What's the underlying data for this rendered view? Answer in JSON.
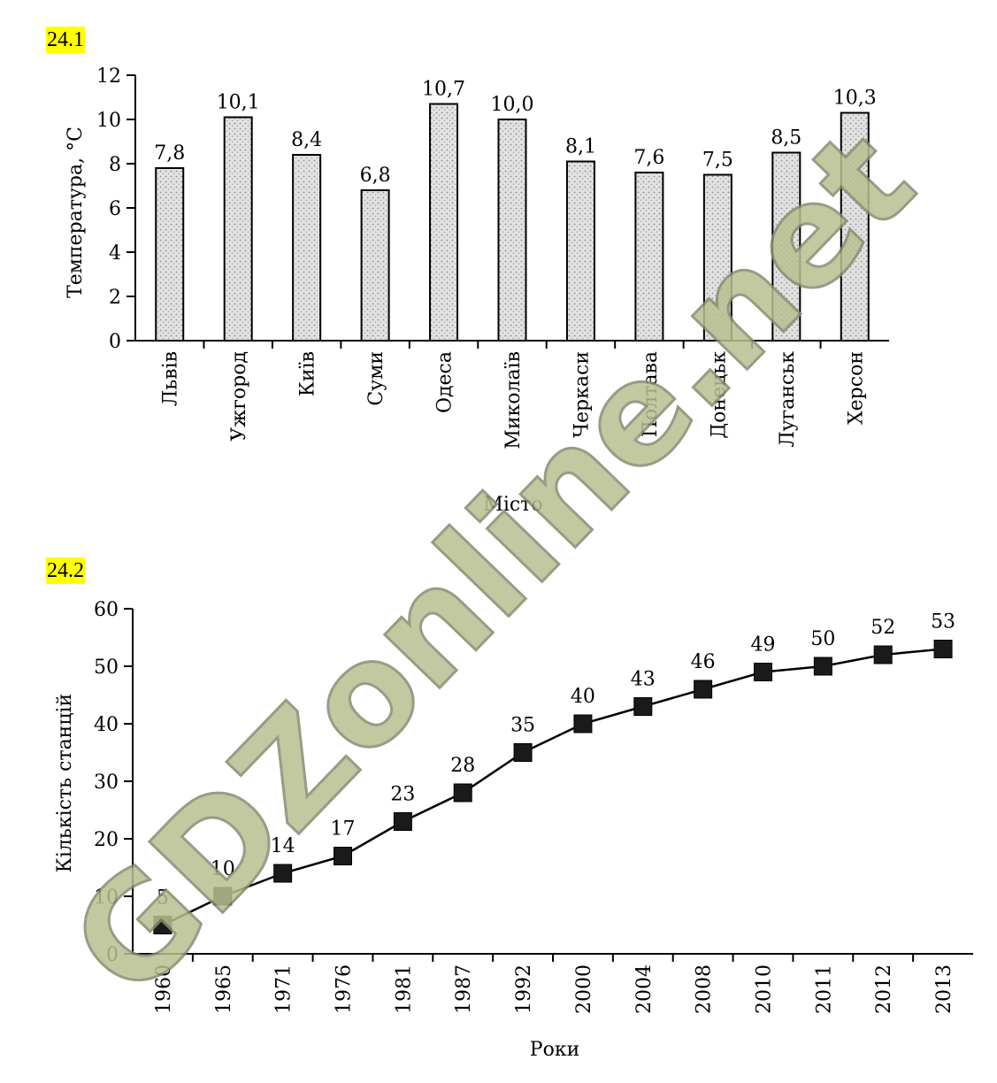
{
  "labels": {
    "chart1": "24.1",
    "chart2": "24.2"
  },
  "watermark": "GDZonline.net",
  "colors": {
    "bar_fill": "#d9d9d9",
    "highlight": "#ffff00",
    "line": "#000000",
    "watermark": "#b8bf8f"
  },
  "chart_data": [
    {
      "type": "bar",
      "categories": [
        "Львів",
        "Ужгород",
        "Київ",
        "Суми",
        "Одеса",
        "Миколаїв",
        "Черкаси",
        "Полтава",
        "Донецьк",
        "Луганськ",
        "Херсон"
      ],
      "values": [
        7.8,
        10.1,
        8.4,
        6.8,
        10.7,
        10.0,
        8.1,
        7.6,
        7.5,
        8.5,
        10.3
      ],
      "value_labels": [
        "7,8",
        "10,1",
        "8,4",
        "6,8",
        "10,7",
        "10,0",
        "8,1",
        "7,6",
        "7,5",
        "8,5",
        "10,3"
      ],
      "yticks": [
        0,
        2,
        4,
        6,
        8,
        10,
        12
      ],
      "ylim": [
        0,
        12
      ],
      "title": "",
      "xlabel": "Місто",
      "ylabel": "Температура, °С"
    },
    {
      "type": "line",
      "x": [
        "1960",
        "1965",
        "1971",
        "1976",
        "1981",
        "1987",
        "1992",
        "2000",
        "2004",
        "2008",
        "2010",
        "2011",
        "2012",
        "2013"
      ],
      "values": [
        5,
        10,
        14,
        17,
        23,
        28,
        35,
        40,
        43,
        46,
        49,
        50,
        52,
        53
      ],
      "yticks": [
        0,
        10,
        20,
        30,
        40,
        50,
        60
      ],
      "ylim": [
        0,
        60
      ],
      "title": "",
      "xlabel": "Роки",
      "ylabel": "Кількість станцій"
    }
  ]
}
